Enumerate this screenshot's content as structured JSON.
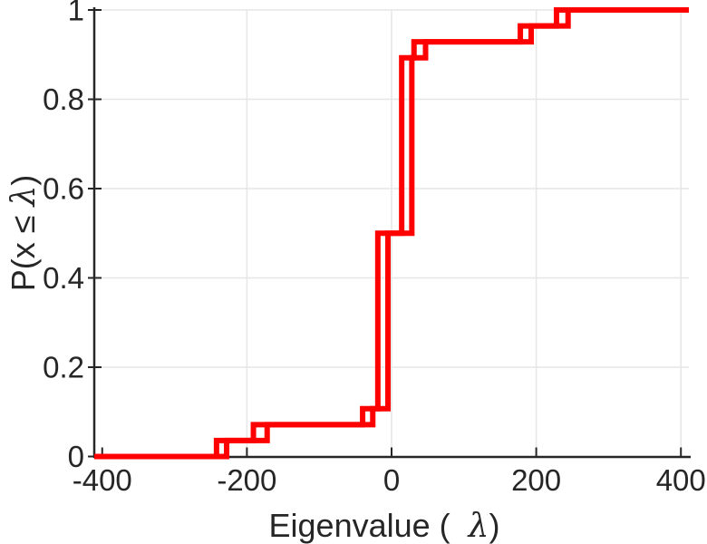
{
  "figure": {
    "background": "#FFFFFF"
  },
  "axes_style": {
    "axis_color": "#262626",
    "grid_color": "#E6E6E6",
    "tick_label_color": "#262626"
  },
  "chart_data": {
    "type": "line",
    "subtype": "ecdf_stairs",
    "title": "",
    "xlabel": {
      "prefix": "Eigenvalue ( ",
      "symbol": "λ",
      "suffix": ")"
    },
    "ylabel": {
      "prefix": "P(x ≤ ",
      "symbol": "λ",
      "suffix": ")"
    },
    "xlim": [
      -411,
      411
    ],
    "ylim": [
      0,
      1
    ],
    "xticks": [
      -400,
      -200,
      0,
      200,
      400
    ],
    "xtick_labels": [
      "-400",
      "-200",
      "0",
      "200",
      "400"
    ],
    "yticks": [
      0,
      0.2,
      0.4,
      0.6,
      0.8,
      1
    ],
    "ytick_labels": [
      "0",
      "0.2",
      "0.4",
      "0.6",
      "0.8",
      "1"
    ],
    "grid": true,
    "grid_x": [
      -200,
      0,
      200,
      400
    ],
    "grid_y": [
      0.2,
      0.4,
      0.6,
      0.8,
      1
    ],
    "legend": null,
    "line_color": "#FF0000",
    "line_width": 6,
    "draw_start_x": -411,
    "draw_end_x": 411,
    "start_level": 0,
    "cumulative_levels": [
      0.0357,
      0.0714,
      0.1071,
      0.5,
      0.8929,
      0.9286,
      0.9643,
      1
    ],
    "series": [
      {
        "name": "ecdf-curve-1",
        "step_x": [
          -242,
          -191,
          -40,
          -19,
          14,
          31,
          178,
          228
        ]
      },
      {
        "name": "ecdf-curve-2",
        "step_x": [
          -228,
          -172,
          -26,
          -5,
          28,
          47,
          193,
          244
        ]
      }
    ]
  }
}
